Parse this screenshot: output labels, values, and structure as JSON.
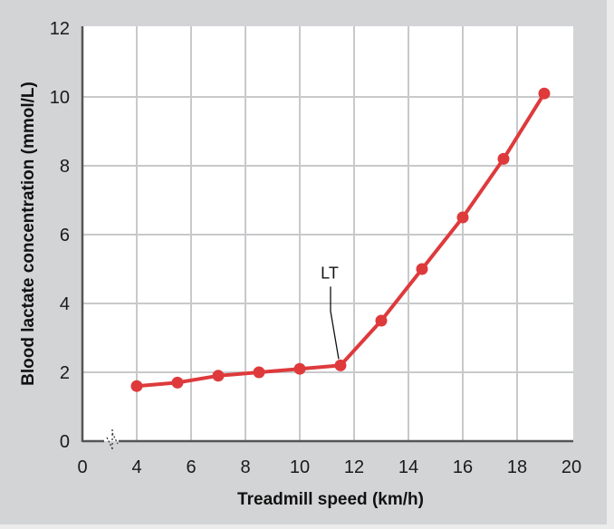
{
  "chart_data": {
    "type": "line",
    "title": "",
    "xlabel": "Treadmill speed (km/h)",
    "ylabel": "Blood lactate concentration (mmol/L)",
    "xlim": [
      0,
      20
    ],
    "ylim": [
      0,
      12
    ],
    "x_axis_break": "between 0 and 4",
    "x_ticks": [
      0,
      4,
      6,
      8,
      10,
      12,
      14,
      16,
      18,
      20
    ],
    "y_ticks": [
      0,
      2,
      4,
      6,
      8,
      10,
      12
    ],
    "grid": true,
    "legend": null,
    "series": [
      {
        "name": "Blood lactate",
        "color": "#de3a3c",
        "x": [
          4,
          5.5,
          7,
          8.5,
          10,
          11.5,
          13,
          14.5,
          16,
          17.5,
          19
        ],
        "values": [
          1.6,
          1.7,
          1.9,
          2.0,
          2.1,
          2.2,
          3.5,
          5.0,
          6.5,
          8.2,
          10.1
        ]
      }
    ],
    "annotations": [
      {
        "text": "LT",
        "x": 11.5,
        "y": 2.2,
        "meaning": "lactate threshold"
      }
    ]
  },
  "colors": {
    "panel_bg": "#d3d4d6",
    "plot_bg": "#ffffff",
    "grid": "#c8c9cb",
    "axis": "#555555",
    "line": "#de3a3c"
  }
}
